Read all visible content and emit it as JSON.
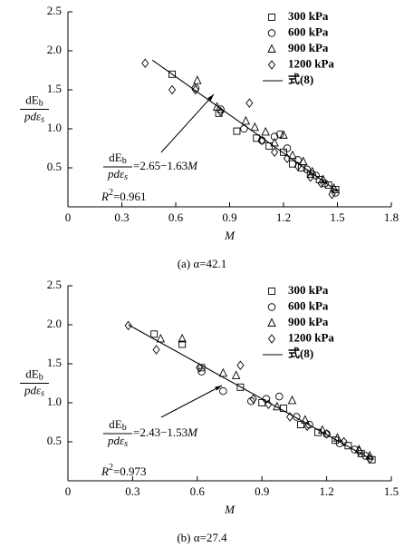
{
  "chart_data": [
    {
      "type": "scatter",
      "caption": "(a) α=42.1",
      "xlabel": "M",
      "ylabel": {
        "numerator": "dE",
        "numerator_sub": "b",
        "denominator": "pdε",
        "denominator_sub": "s"
      },
      "xlim": [
        0,
        1.8
      ],
      "xticks": [
        0,
        0.3,
        0.6,
        0.9,
        1.2,
        1.5,
        1.8
      ],
      "ylim": [
        0,
        2.5
      ],
      "yticks": [
        0.5,
        {
          "value": 1,
          "label": "1.0"
        },
        1.5,
        {
          "value": 2,
          "label": "2.0"
        },
        2.5
      ],
      "grid": false,
      "legend": "upper right",
      "series": [
        {
          "name": "300 kPa",
          "marker": "square",
          "color": "#000",
          "x": [
            0.58,
            0.84,
            0.94,
            1.05,
            1.12,
            1.2,
            1.25,
            1.3,
            1.35,
            1.4,
            1.45,
            1.49
          ],
          "y": [
            1.7,
            1.2,
            0.97,
            0.88,
            0.78,
            0.7,
            0.55,
            0.5,
            0.42,
            0.35,
            0.28,
            0.22
          ]
        },
        {
          "name": "600 kPa",
          "marker": "circle",
          "color": "#000",
          "x": [
            0.71,
            0.85,
            0.98,
            1.08,
            1.15,
            1.18,
            1.22,
            1.28,
            1.33,
            1.38,
            1.43,
            1.49
          ],
          "y": [
            1.52,
            1.25,
            1.0,
            0.85,
            0.9,
            0.93,
            0.75,
            0.6,
            0.48,
            0.4,
            0.3,
            0.18
          ]
        },
        {
          "name": "900 kPa",
          "marker": "triangle",
          "color": "#000",
          "x": [
            0.72,
            0.83,
            0.99,
            1.04,
            1.1,
            1.15,
            1.2,
            1.25,
            1.31,
            1.36,
            1.42,
            1.48
          ],
          "y": [
            1.62,
            1.28,
            1.1,
            1.02,
            0.96,
            0.82,
            0.92,
            0.66,
            0.58,
            0.45,
            0.35,
            0.24
          ]
        },
        {
          "name": "1200 kPa",
          "marker": "diamond",
          "color": "#000",
          "x": [
            0.43,
            0.58,
            0.71,
            0.85,
            1.01,
            1.08,
            1.15,
            1.22,
            1.28,
            1.35,
            1.41,
            1.47
          ],
          "y": [
            1.84,
            1.5,
            1.5,
            1.22,
            1.33,
            0.85,
            0.7,
            0.62,
            0.52,
            0.38,
            0.3,
            0.16
          ]
        }
      ],
      "fit": {
        "name": "式(8)",
        "color": "#000",
        "x": [
          0.47,
          1.5
        ],
        "y": [
          1.88,
          0.2
        ]
      },
      "annotation": {
        "numerator": "dE",
        "numerator_sub": "b",
        "denominator": "pdε",
        "denominator_sub": "s",
        "rhs": "=2.65−1.63",
        "rhs_var": "M"
      },
      "r2": {
        "symbol": "R",
        "power": "2",
        "value": "=0.961"
      }
    },
    {
      "type": "scatter",
      "caption": "(b) α=27.4",
      "xlabel": "M",
      "ylabel": {
        "numerator": "dE",
        "numerator_sub": "b",
        "denominator": "pdε",
        "denominator_sub": "s"
      },
      "xlim": [
        0,
        1.5
      ],
      "xticks": [
        0,
        0.3,
        0.6,
        0.9,
        1.2,
        1.5
      ],
      "ylim": [
        0,
        2.5
      ],
      "yticks": [
        0.5,
        {
          "value": 1,
          "label": "1.0"
        },
        1.5,
        {
          "value": 2,
          "label": "2.0"
        },
        2.5
      ],
      "grid": false,
      "legend": "upper right",
      "series": [
        {
          "name": "300 kPa",
          "marker": "square",
          "color": "#000",
          "x": [
            0.4,
            0.53,
            0.62,
            0.8,
            0.9,
            1.0,
            1.08,
            1.16,
            1.24,
            1.3,
            1.36,
            1.41
          ],
          "y": [
            1.88,
            1.75,
            1.45,
            1.2,
            1.0,
            0.93,
            0.72,
            0.62,
            0.52,
            0.45,
            0.35,
            0.27
          ]
        },
        {
          "name": "600 kPa",
          "marker": "circle",
          "color": "#000",
          "x": [
            0.62,
            0.72,
            0.85,
            0.92,
            0.98,
            1.06,
            1.12,
            1.2,
            1.26,
            1.33,
            1.38
          ],
          "y": [
            1.4,
            1.15,
            1.02,
            1.05,
            1.08,
            0.82,
            0.72,
            0.6,
            0.48,
            0.4,
            0.32
          ]
        },
        {
          "name": "900 kPa",
          "marker": "triangle",
          "color": "#000",
          "x": [
            0.43,
            0.53,
            0.72,
            0.78,
            0.97,
            1.04,
            1.1,
            1.18,
            1.25,
            1.35,
            1.4
          ],
          "y": [
            1.82,
            1.82,
            1.38,
            1.35,
            0.95,
            1.03,
            0.78,
            0.65,
            0.55,
            0.4,
            0.32
          ]
        },
        {
          "name": "1200 kPa",
          "marker": "diamond",
          "color": "#000",
          "x": [
            0.28,
            0.41,
            0.61,
            0.8,
            0.86,
            0.93,
            1.03,
            1.11,
            1.2,
            1.28,
            1.35,
            1.4
          ],
          "y": [
            1.99,
            1.68,
            1.45,
            1.48,
            1.05,
            0.98,
            0.82,
            0.7,
            0.6,
            0.5,
            0.38,
            0.28
          ]
        }
      ],
      "fit": {
        "name": "式(8)",
        "color": "#000",
        "x": [
          0.28,
          1.41
        ],
        "y": [
          2.0,
          0.27
        ]
      },
      "annotation": {
        "numerator": "dE",
        "numerator_sub": "b",
        "denominator": "pdε",
        "denominator_sub": "s",
        "rhs": "=2.43−1.53",
        "rhs_var": "M"
      },
      "r2": {
        "symbol": "R",
        "power": "2",
        "value": "=0.973"
      }
    }
  ]
}
